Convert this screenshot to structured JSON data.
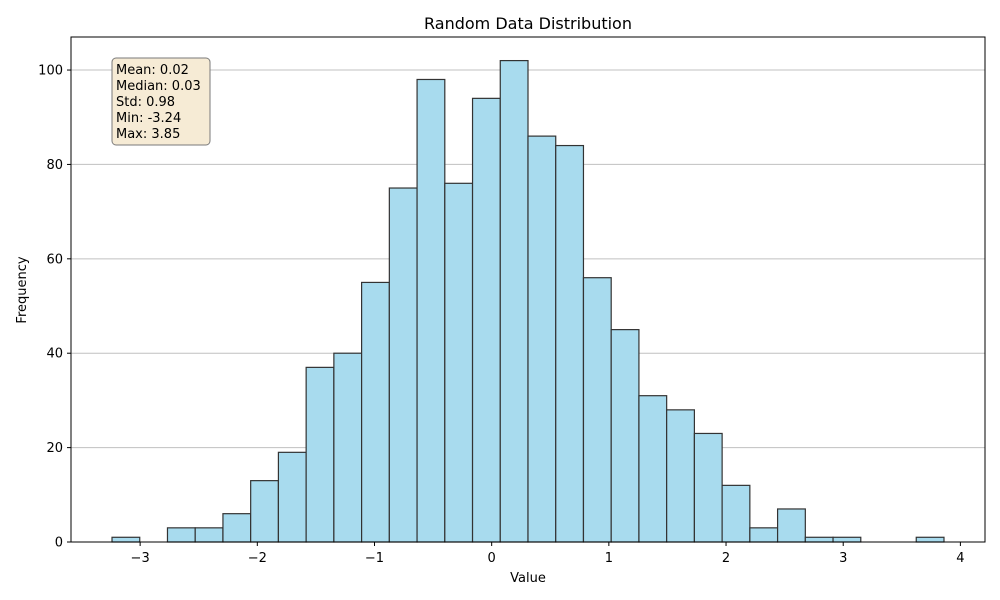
{
  "chart_data": {
    "type": "bar",
    "title": "Random Data Distribution",
    "xlabel": "Value",
    "ylabel": "Frequency",
    "xlim": [
      -3.59,
      4.21
    ],
    "ylim": [
      0,
      107
    ],
    "bin_edges": [
      -3.24,
      -3.0033,
      -2.7667,
      -2.53,
      -2.2933,
      -2.0567,
      -1.82,
      -1.5833,
      -1.3467,
      -1.11,
      -0.8733,
      -0.6367,
      -0.4,
      -0.1633,
      0.0733,
      0.31,
      0.5467,
      0.7833,
      1.02,
      1.2567,
      1.4933,
      1.73,
      1.9667,
      2.2033,
      2.44,
      2.6767,
      2.9133,
      3.15,
      3.3867,
      3.6233,
      3.86
    ],
    "values": [
      1,
      0,
      3,
      3,
      6,
      13,
      19,
      37,
      40,
      55,
      75,
      98,
      76,
      94,
      102,
      86,
      84,
      56,
      45,
      31,
      28,
      23,
      12,
      3,
      7,
      1,
      1,
      0,
      0,
      1
    ],
    "x_ticks": [
      -3,
      -2,
      -1,
      0,
      1,
      2,
      3,
      4
    ],
    "x_tick_labels": [
      "−3",
      "−2",
      "−1",
      "0",
      "1",
      "2",
      "3",
      "4"
    ],
    "y_ticks": [
      0,
      20,
      40,
      60,
      80,
      100
    ],
    "y_tick_labels": [
      "0",
      "20",
      "40",
      "60",
      "80",
      "100"
    ],
    "grid": "y-axis",
    "colors": {
      "bar_fill": "#a8dbee",
      "bar_edge": "#333333",
      "grid": "#c0c0c0",
      "stats_box_fill": "#f6ebd5",
      "stats_box_edge": "#7a7a7a"
    },
    "annotations": {
      "stats": [
        "Mean: 0.02",
        "Median: 0.03",
        "Std: 0.98",
        "Min: -3.24",
        "Max: 3.85"
      ],
      "placement": "top-left"
    }
  }
}
